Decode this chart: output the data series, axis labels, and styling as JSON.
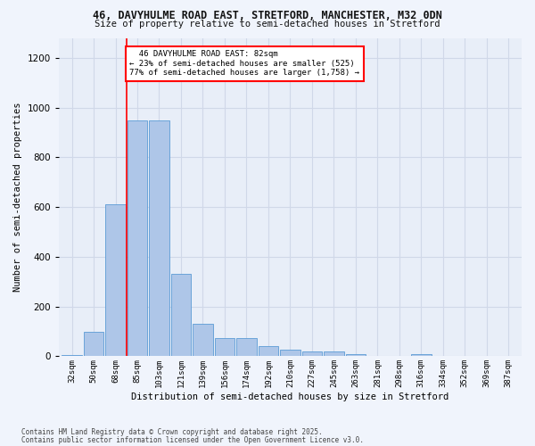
{
  "title_line1": "46, DAVYHULME ROAD EAST, STRETFORD, MANCHESTER, M32 0DN",
  "title_line2": "Size of property relative to semi-detached houses in Stretford",
  "xlabel": "Distribution of semi-detached houses by size in Stretford",
  "ylabel": "Number of semi-detached properties",
  "bin_labels": [
    "32sqm",
    "50sqm",
    "68sqm",
    "85sqm",
    "103sqm",
    "121sqm",
    "139sqm",
    "156sqm",
    "174sqm",
    "192sqm",
    "210sqm",
    "227sqm",
    "245sqm",
    "263sqm",
    "281sqm",
    "298sqm",
    "316sqm",
    "334sqm",
    "352sqm",
    "369sqm",
    "387sqm"
  ],
  "bar_heights": [
    5,
    100,
    610,
    950,
    950,
    330,
    130,
    75,
    75,
    40,
    25,
    20,
    20,
    10,
    0,
    0,
    10,
    0,
    0,
    0,
    0
  ],
  "bar_color": "#aec6e8",
  "bar_edge_color": "#5b9bd5",
  "subject_sqm": 82,
  "subject_label": "46 DAVYHULME ROAD EAST: 82sqm",
  "pct_smaller": 23,
  "pct_larger": 77,
  "count_smaller": 525,
  "count_larger": 1758,
  "vline_color": "#ff0000",
  "ylim": [
    0,
    1280
  ],
  "yticks": [
    0,
    200,
    400,
    600,
    800,
    1000,
    1200
  ],
  "grid_color": "#d0d8e8",
  "bg_color": "#e8eef8",
  "fig_bg_color": "#f0f4fc",
  "footnote1": "Contains HM Land Registry data © Crown copyright and database right 2025.",
  "footnote2": "Contains public sector information licensed under the Open Government Licence v3.0."
}
